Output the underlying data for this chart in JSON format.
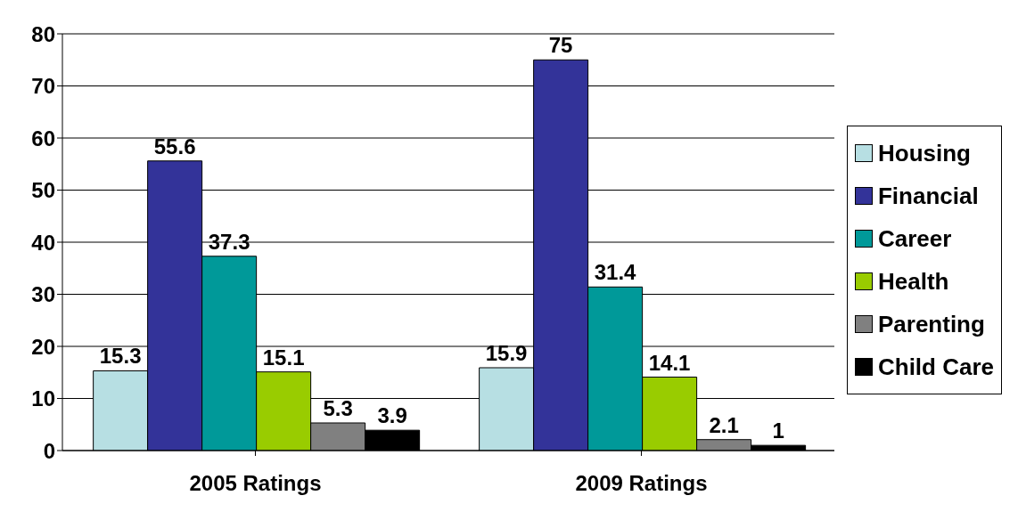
{
  "chart_data": {
    "type": "bar",
    "categories": [
      "2005 Ratings",
      "2009 Ratings"
    ],
    "series": [
      {
        "name": "Housing",
        "color": "#b7dfe3",
        "values": [
          15.3,
          15.9
        ]
      },
      {
        "name": "Financial",
        "color": "#333399",
        "values": [
          55.6,
          75
        ]
      },
      {
        "name": "Career",
        "color": "#009999",
        "values": [
          37.3,
          31.4
        ]
      },
      {
        "name": "Health",
        "color": "#99cc00",
        "values": [
          15.1,
          14.1
        ]
      },
      {
        "name": "Parenting",
        "color": "#808080",
        "values": [
          5.3,
          2.1
        ]
      },
      {
        "name": "Child Care",
        "color": "#000000",
        "values": [
          3.9,
          1
        ]
      }
    ],
    "ylim": [
      0,
      80
    ],
    "yticks": [
      0,
      10,
      20,
      30,
      40,
      50,
      60,
      70,
      80
    ],
    "grid": "y",
    "legend": "right",
    "data_labels": true
  }
}
